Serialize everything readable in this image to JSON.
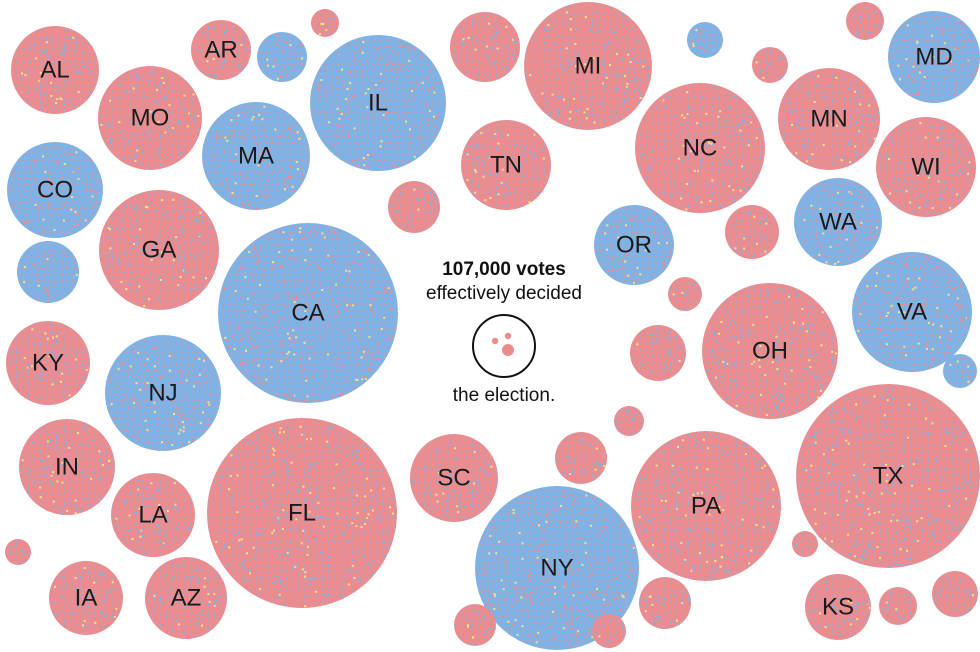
{
  "colors": {
    "dem": "#7fb3e6",
    "rep": "#ec8c8f",
    "other": "#f1e58a",
    "outline": "#111111",
    "label": "#1a1a1a"
  },
  "note": {
    "headline": "107,000 votes",
    "line2": "effectively decided",
    "line3": "the election."
  },
  "chart_data": {
    "type": "bubble-cluster",
    "title": "",
    "annotation": "107,000 votes effectively decided the election.",
    "encoding": "Each circle is a state sized by number of votes; dots colored blue (Democratic) and red (Republican).",
    "states": [
      {
        "label": "AL",
        "lean": "rep"
      },
      {
        "label": "AR",
        "lean": "rep"
      },
      {
        "label": "MO",
        "lean": "rep"
      },
      {
        "label": "MA",
        "lean": "dem"
      },
      {
        "label": "IL",
        "lean": "dem"
      },
      {
        "label": "CO",
        "lean": "dem"
      },
      {
        "label": "GA",
        "lean": "rep"
      },
      {
        "label": "CA",
        "lean": "dem"
      },
      {
        "label": "KY",
        "lean": "rep"
      },
      {
        "label": "NJ",
        "lean": "dem"
      },
      {
        "label": "IN",
        "lean": "rep"
      },
      {
        "label": "LA",
        "lean": "rep"
      },
      {
        "label": "FL",
        "lean": "rep"
      },
      {
        "label": "IA",
        "lean": "rep"
      },
      {
        "label": "AZ",
        "lean": "rep"
      },
      {
        "label": "MI",
        "lean": "rep"
      },
      {
        "label": "TN",
        "lean": "rep"
      },
      {
        "label": "NC",
        "lean": "rep"
      },
      {
        "label": "OR",
        "lean": "dem"
      },
      {
        "label": "SC",
        "lean": "rep"
      },
      {
        "label": "NY",
        "lean": "dem"
      },
      {
        "label": "PA",
        "lean": "rep"
      },
      {
        "label": "MN",
        "lean": "rep"
      },
      {
        "label": "MD",
        "lean": "dem"
      },
      {
        "label": "WI",
        "lean": "rep"
      },
      {
        "label": "WA",
        "lean": "dem"
      },
      {
        "label": "VA",
        "lean": "dem"
      },
      {
        "label": "OH",
        "lean": "rep"
      },
      {
        "label": "TX",
        "lean": "rep"
      },
      {
        "label": "KS",
        "lean": "rep"
      }
    ],
    "unlabeled_lean": [
      "rep",
      "dem",
      "rep",
      "dem",
      "rep",
      "rep",
      "rep",
      "dem",
      "rep",
      "rep",
      "rep",
      "dem",
      "rep",
      "rep",
      "rep",
      "rep",
      "rep",
      "rep",
      "rep",
      "rep",
      "rep"
    ]
  }
}
